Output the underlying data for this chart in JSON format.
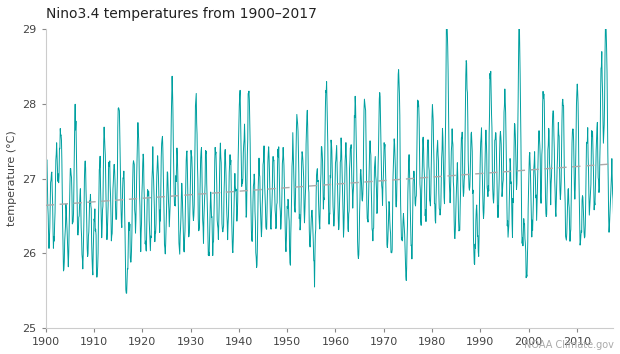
{
  "title": "Nino3.4 temperatures from 1900–2017",
  "ylabel": "temperature (°C)",
  "xlim": [
    1900,
    2017.5
  ],
  "ylim": [
    25,
    29
  ],
  "yticks": [
    25,
    26,
    27,
    28,
    29
  ],
  "xticks": [
    1900,
    1910,
    1920,
    1930,
    1940,
    1950,
    1960,
    1970,
    1980,
    1990,
    2000,
    2010
  ],
  "line_color": "#00A0A0",
  "trend_color": "#aaaaaa",
  "bg_color": "#ffffff",
  "watermark": "NOAA Climate.gov"
}
